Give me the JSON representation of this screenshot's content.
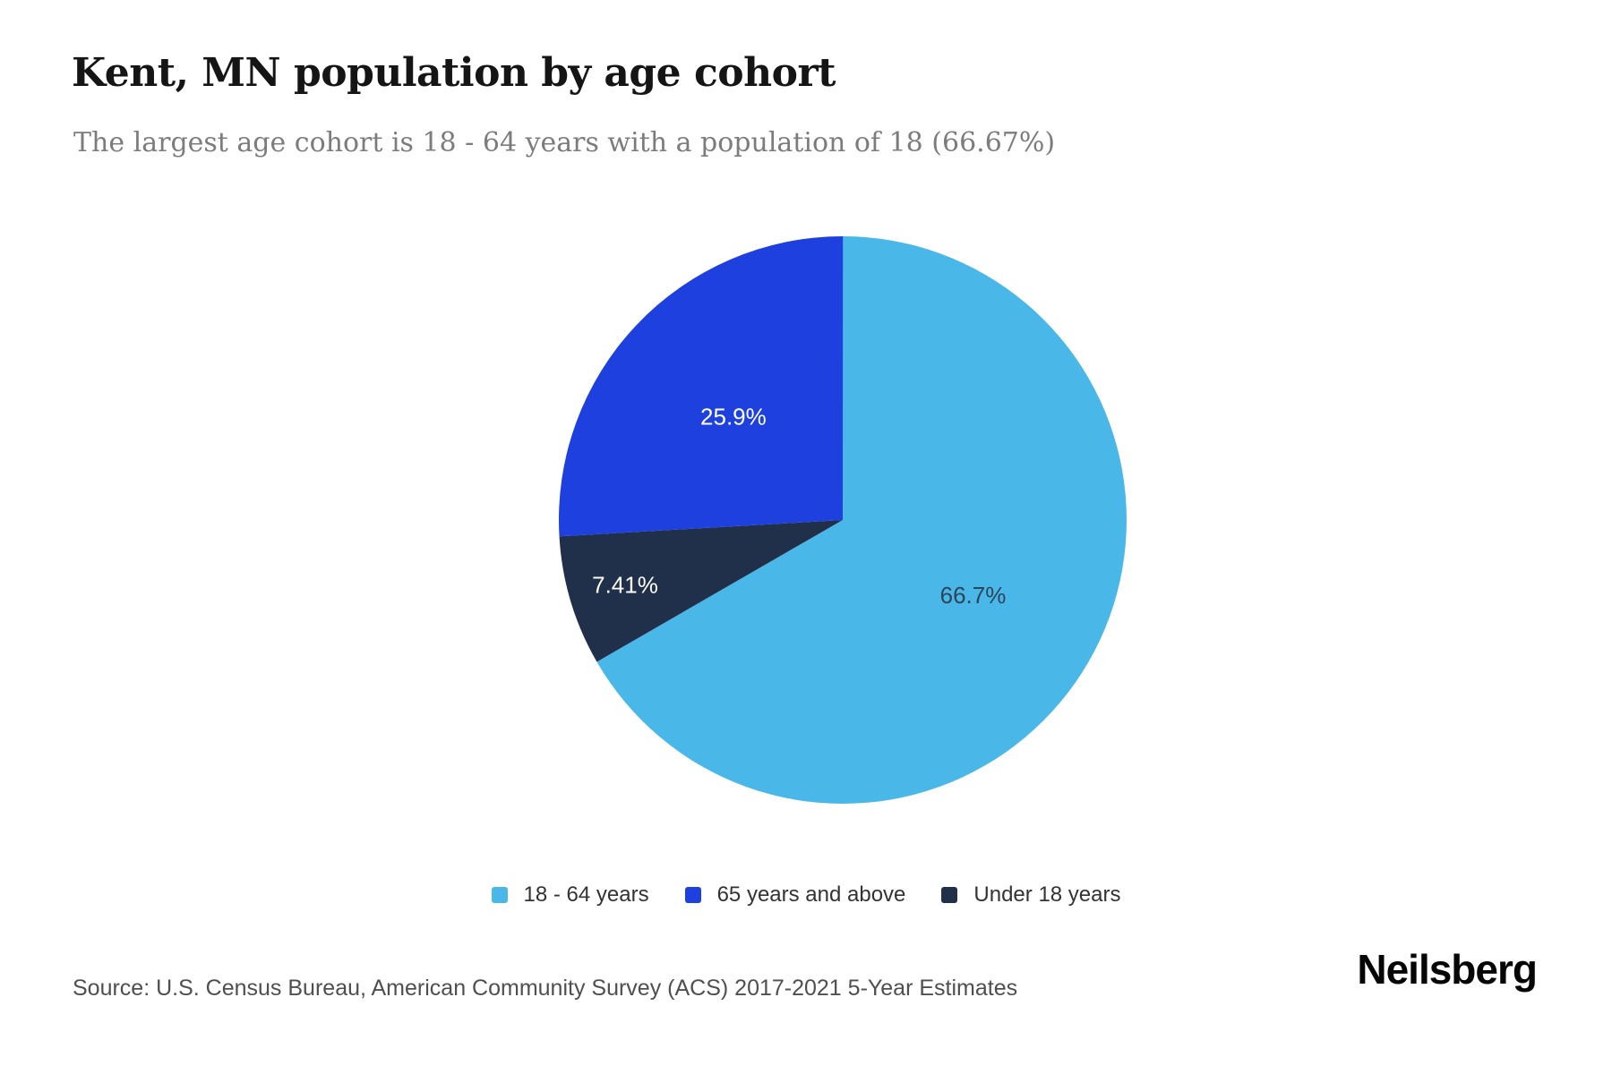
{
  "page": {
    "title": "Kent, MN population by age cohort",
    "subtitle": "The largest age cohort is 18 - 64 years with a population of 18 (66.67%)",
    "source": "Source: U.S. Census Bureau, American Community Survey (ACS) 2017-2021 5-Year Estimates",
    "brand": "Neilsberg"
  },
  "colors": {
    "slice_light_blue": "#4AB7E9",
    "slice_royal_blue": "#1D40DE",
    "slice_navy": "#21304A",
    "title_text": "#151515",
    "subtitle_text": "#7C7C7C",
    "legend_text": "#333333",
    "source_text": "#4F4F4F",
    "label_on_light": "#2E4457",
    "label_on_dark": "#FFFFFF"
  },
  "chart_data": {
    "type": "pie",
    "title": "Kent, MN population by age cohort",
    "unit": "percent of total population",
    "start_angle_deg": 0,
    "direction": "clockwise",
    "largest_cohort": {
      "name": "18 - 64 years",
      "population": 18,
      "pct_label": "66.67%"
    },
    "slices": [
      {
        "name": "18 - 64 years",
        "pct": 66.67,
        "label": "66.7%",
        "color": "#4AB7E9",
        "label_color": "#2E4457"
      },
      {
        "name": "Under 18 years",
        "pct": 7.41,
        "label": "7.41%",
        "color": "#21304A",
        "label_color": "#FFFFFF"
      },
      {
        "name": "65 years and above",
        "pct": 25.93,
        "label": "25.9%",
        "color": "#1D40DE",
        "label_color": "#FFFFFF"
      }
    ],
    "legend": [
      {
        "label": "18 - 64 years",
        "color": "#4AB7E9"
      },
      {
        "label": "65 years and above",
        "color": "#1D40DE"
      },
      {
        "label": "Under 18 years",
        "color": "#21304A"
      }
    ],
    "legend_position": "bottom-center"
  }
}
